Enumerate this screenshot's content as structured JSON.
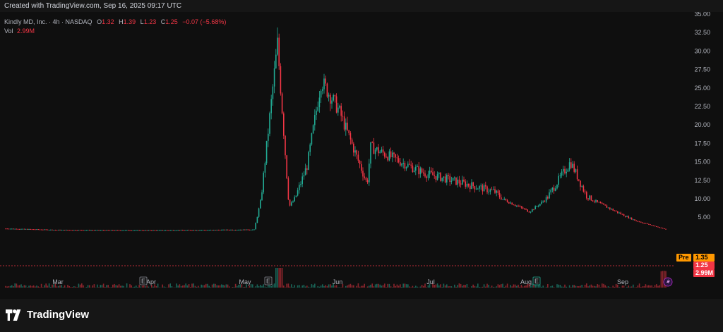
{
  "header": {
    "created_text": "Created with TradingView.com, Sep 16, 2025 09:17 UTC"
  },
  "legend": {
    "symbol": "Kindly MD, Inc. · 4h · NASDAQ",
    "open_label": "O",
    "open": "1.32",
    "high_label": "H",
    "high": "1.39",
    "low_label": "L",
    "low": "1.23",
    "close_label": "C",
    "close": "1.25",
    "change": "−0.07 (−5.68%)",
    "vol_label": "Vol",
    "vol": "2.99M"
  },
  "price_badges": {
    "pre_label": "Pre",
    "pre_value": "1.35",
    "last_value": "1.25",
    "volume_value": "2.99M"
  },
  "event_markers": [
    {
      "label": "E",
      "month": "Apr",
      "kind": "earnings"
    },
    {
      "label": "E",
      "month": "May",
      "kind": "earnings"
    },
    {
      "label": "E",
      "month": "Aug",
      "kind": "earnings-upcoming"
    }
  ],
  "branding": {
    "logo_text": "TradingView",
    "logo_icon": "tradingview-logo-icon"
  },
  "colors": {
    "up": "#22ab94",
    "down": "#f23645",
    "pre": "#ff9800",
    "background": "#0f0f0f"
  },
  "chart_data": {
    "type": "candlestick",
    "title": "Kindly MD, Inc. · 4h · NASDAQ",
    "y_axis_ticks": [
      "35.00",
      "32.50",
      "30.00",
      "27.50",
      "25.00",
      "22.50",
      "20.00",
      "17.50",
      "15.00",
      "12.50",
      "10.00",
      "5.00"
    ],
    "x_axis_ticks": [
      "Mar",
      "Apr",
      "May",
      "Jun",
      "Jul",
      "Aug",
      "Sep"
    ],
    "ylim": [
      0,
      35
    ],
    "scale": "percent-like (non-linear)",
    "grid": false,
    "price_path": [
      {
        "t": "Feb",
        "price": 1.6
      },
      {
        "t": "Mar",
        "price": 1.2
      },
      {
        "t": "Apr",
        "price": 1.1
      },
      {
        "t": "late Apr",
        "price": 1.2
      },
      {
        "t": "early May",
        "price": 1.3
      },
      {
        "t": "May peak",
        "price": 31.0
      },
      {
        "t": "May low",
        "price": 8.0
      },
      {
        "t": "late May",
        "price": 14.5
      },
      {
        "t": "end May",
        "price": 26.0
      },
      {
        "t": "Jun",
        "price": 22.0
      },
      {
        "t": "mid Jun",
        "price": 12.0
      },
      {
        "t": "late Jun",
        "price": 17.0
      },
      {
        "t": "Jul",
        "price": 13.5
      },
      {
        "t": "late Jul",
        "price": 11.0
      },
      {
        "t": "Aug",
        "price": 6.5
      },
      {
        "t": "mid Aug",
        "price": 15.0
      },
      {
        "t": "late Aug",
        "price": 10.5
      },
      {
        "t": "Sep",
        "price": 4.0
      },
      {
        "t": "mid Sep",
        "price": 1.25
      }
    ]
  }
}
